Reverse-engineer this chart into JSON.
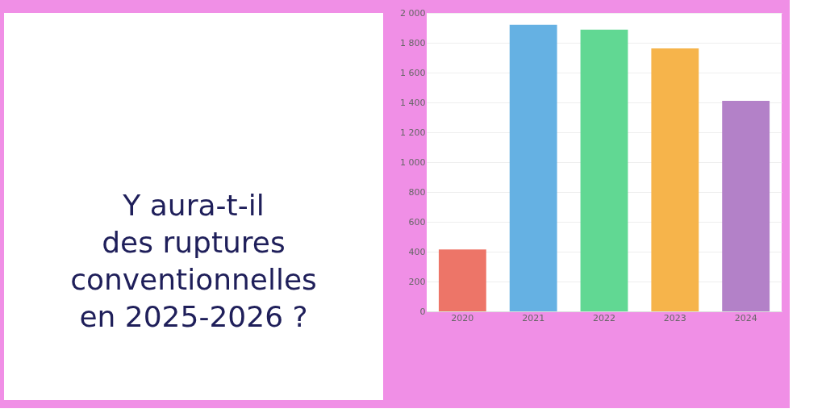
{
  "chart_data": {
    "type": "bar",
    "title": "Y aura-t-il des ruptures conventionnelles en 2025-2026 ?",
    "categories": [
      "2020",
      "2021",
      "2022",
      "2023",
      "2024"
    ],
    "values": [
      415,
      1920,
      1888,
      1762,
      1411
    ],
    "colors": [
      "#ec6e60",
      "#5dade2",
      "#58d68d",
      "#f5b041",
      "#af7ac5"
    ],
    "ylim": [
      0,
      2000
    ],
    "yticks": [
      0,
      200,
      400,
      600,
      800,
      {
        "value": 1000,
        "label": "1 000"
      },
      {
        "value": 1200,
        "label": "1 200"
      },
      {
        "value": 1400,
        "label": "1 400"
      },
      {
        "value": 1600,
        "label": "1 600"
      },
      {
        "value": 1800,
        "label": "1 800"
      },
      {
        "value": 2000,
        "label": "2 000"
      }
    ],
    "grid": "y"
  }
}
